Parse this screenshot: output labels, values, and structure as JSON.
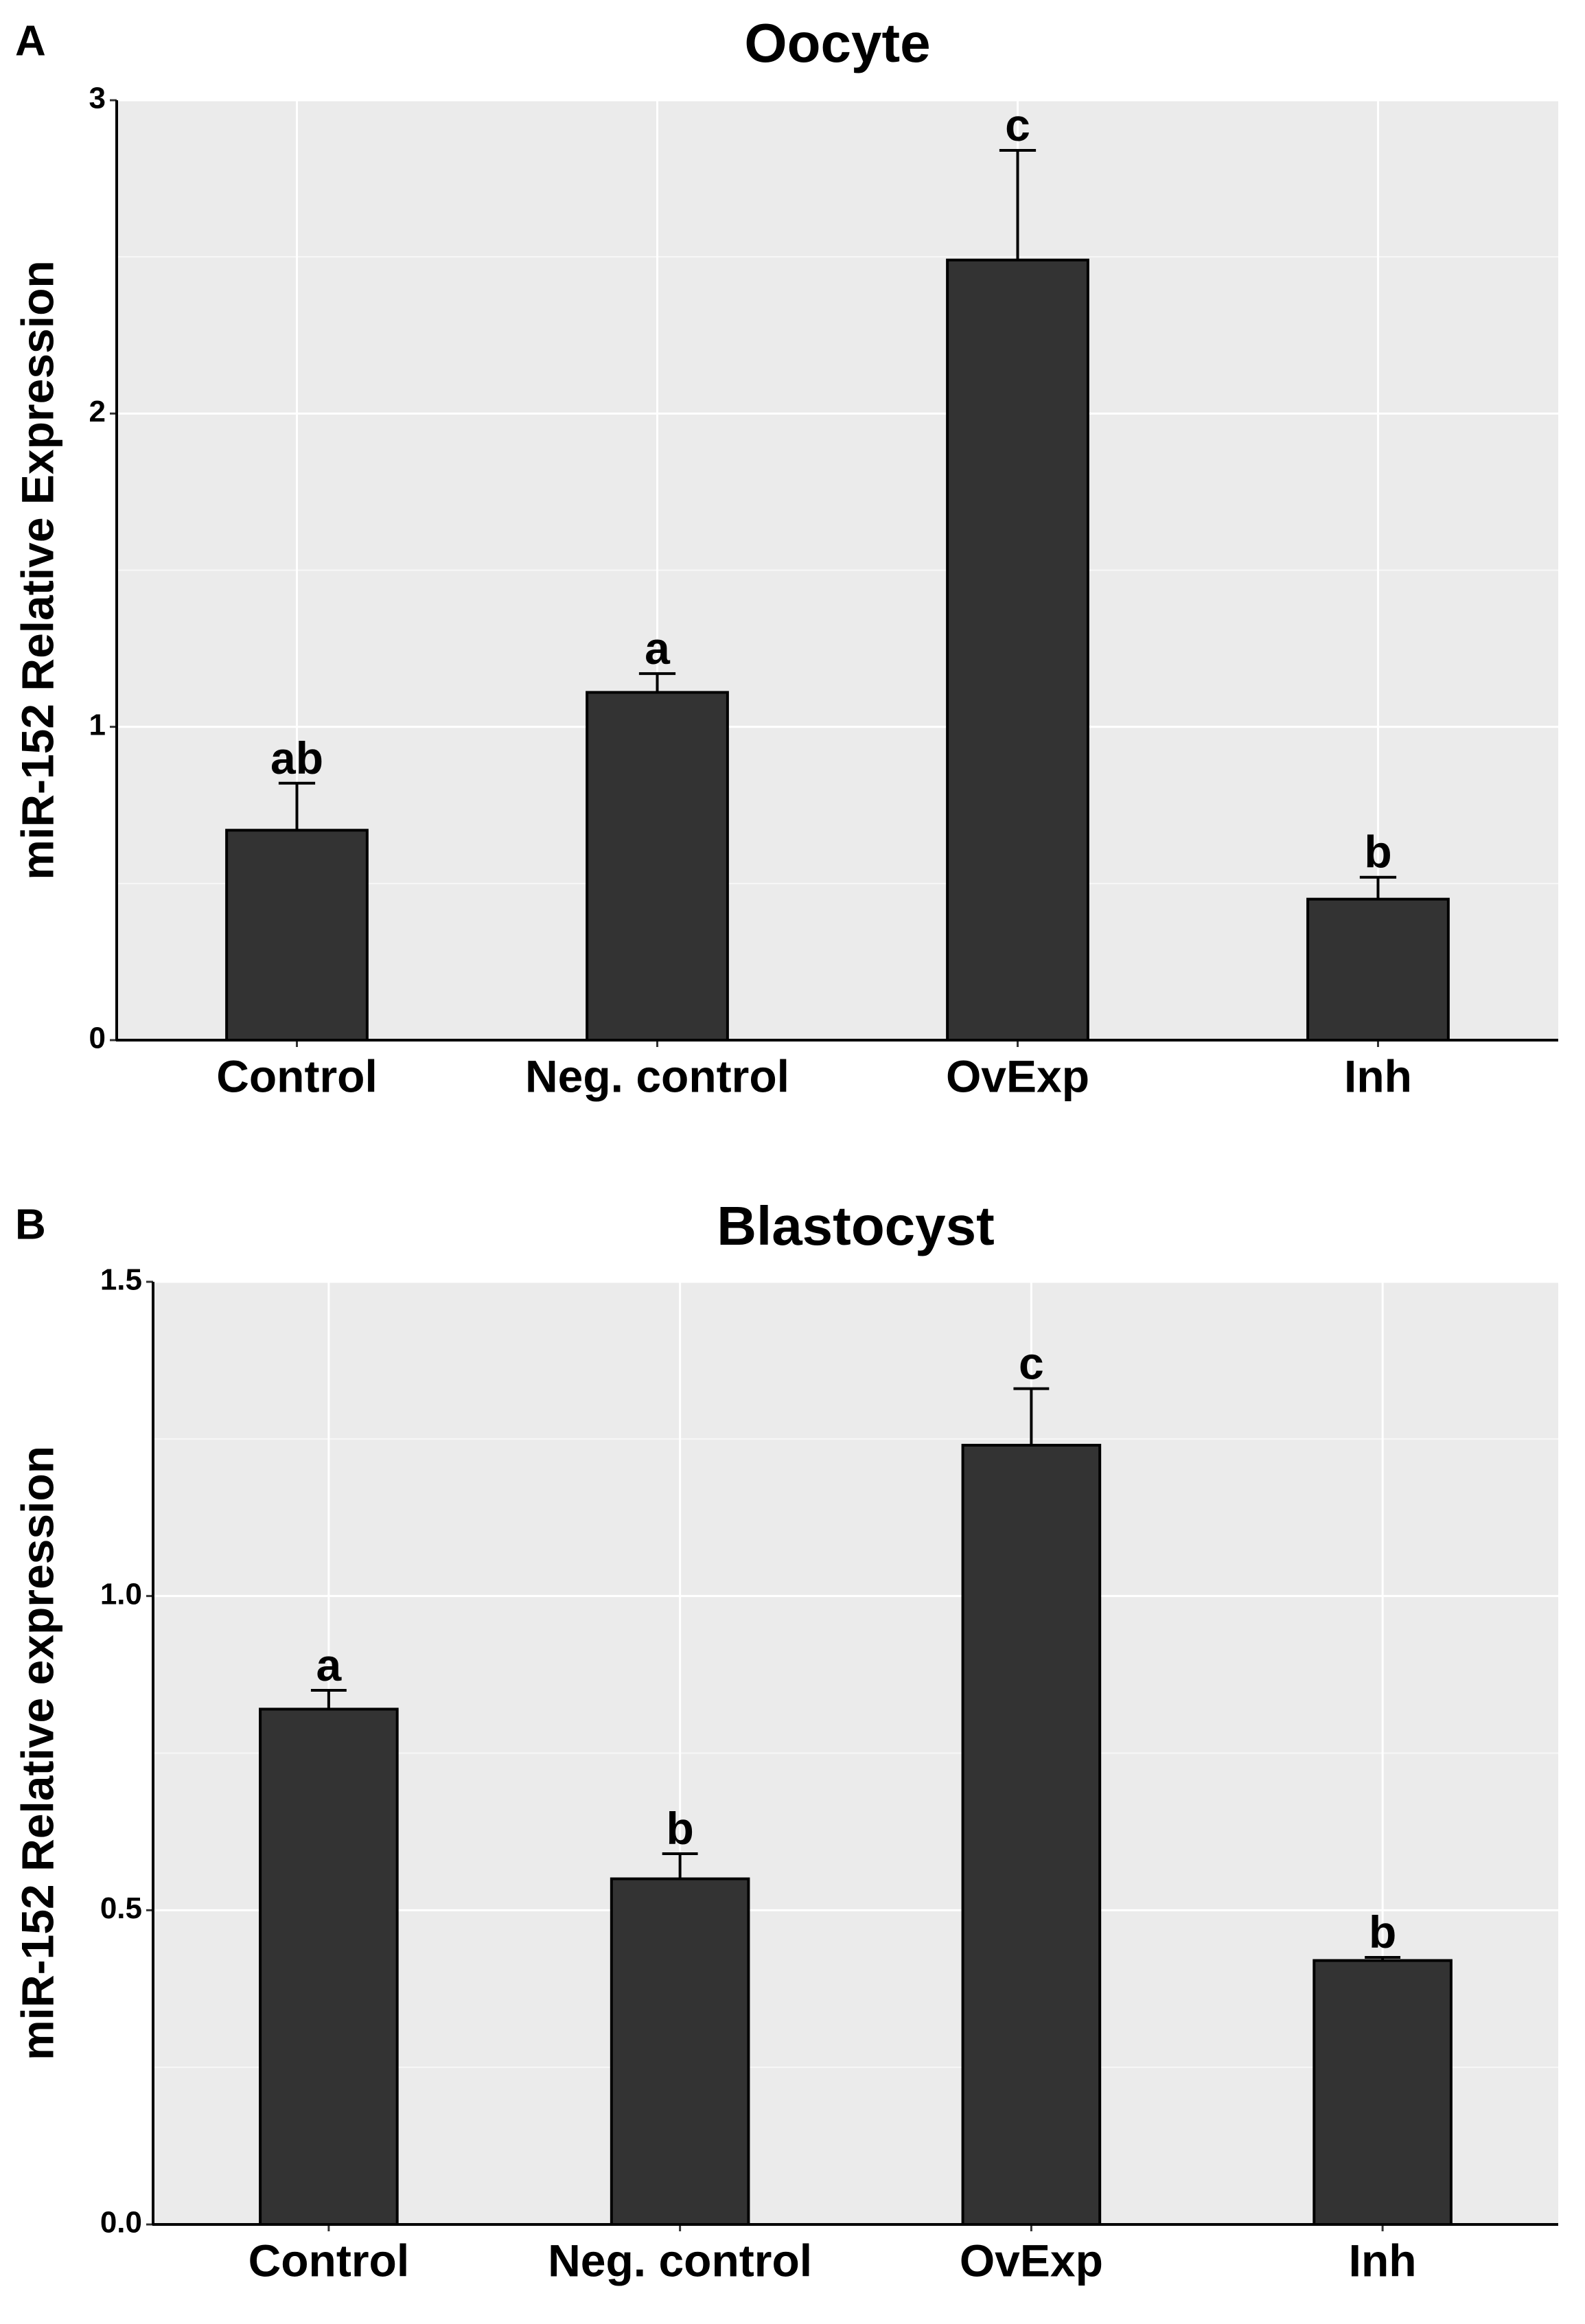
{
  "chart_data": [
    {
      "type": "bar",
      "panel_label": "A",
      "title": "Oocyte",
      "y_label": "miR-152 Relative Expression",
      "categories": [
        "Control",
        "Neg. control",
        "OvExp",
        "Inh"
      ],
      "values": [
        0.67,
        1.11,
        2.49,
        0.45
      ],
      "errors": [
        0.15,
        0.06,
        0.35,
        0.07
      ],
      "annotations": [
        "ab",
        "a",
        "c",
        "b"
      ],
      "color": "#333333",
      "ylim": [
        0,
        3
      ],
      "yticks": [
        0,
        1,
        2,
        3
      ],
      "grid": true
    },
    {
      "type": "bar",
      "panel_label": "B",
      "title": "Blastocyst",
      "y_label": "miR-152 Relative expression",
      "categories": [
        "Control",
        "Neg. control",
        "OvExp",
        "Inh"
      ],
      "values": [
        0.82,
        0.55,
        1.24,
        0.42
      ],
      "errors": [
        0.03,
        0.04,
        0.09,
        0.005
      ],
      "annotations": [
        "a",
        "b",
        "c",
        "b"
      ],
      "color": "#333333",
      "ylim": [
        0,
        1.5
      ],
      "yticks": [
        {
          "value": 0,
          "label": "0.0"
        },
        0.5,
        {
          "value": 1,
          "label": "1.0"
        },
        1.5
      ],
      "grid": true
    }
  ]
}
